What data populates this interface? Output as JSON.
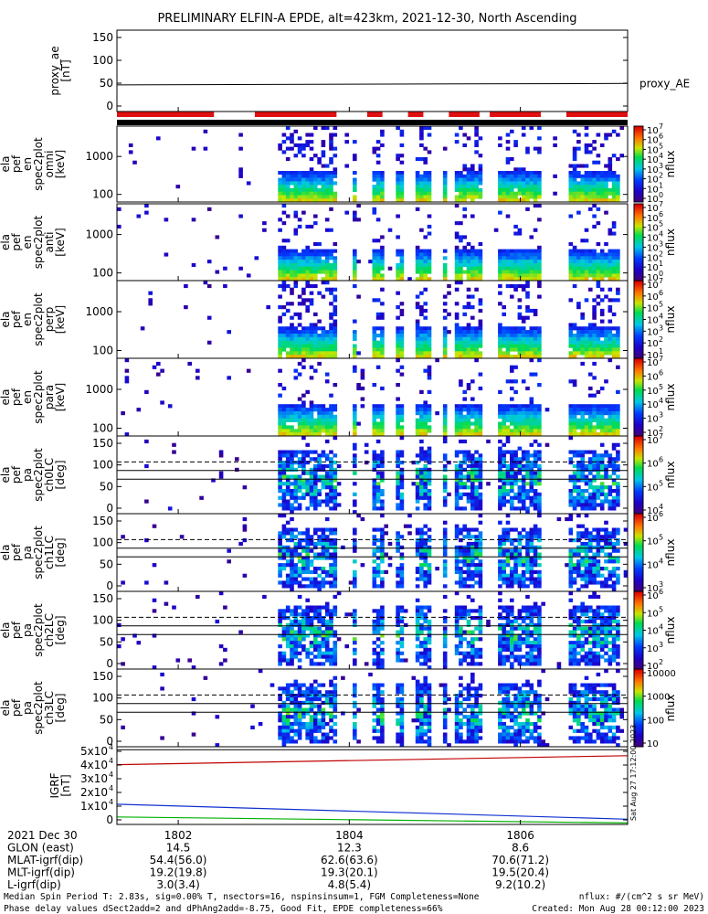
{
  "title": "PRELIMINARY ELFIN-A EPDE, alt=423km, 2021-12-30, North Ascending",
  "chart_data": {
    "type": "heatmap",
    "x_ticks": [
      "1802",
      "1804",
      "1806"
    ],
    "panels": [
      {
        "id": "proxy_ae",
        "ylabel": [
          "proxy_ae",
          "[nT]"
        ],
        "yticks": [
          "150",
          "100",
          "50",
          "0"
        ],
        "legend": "proxy_AE",
        "value": 45
      },
      {
        "id": "omni",
        "ylabel": [
          "ela",
          "pef",
          "en",
          "spec2plot",
          "omni",
          "[keV]"
        ],
        "yticks": [
          "1000",
          "100"
        ],
        "cbar_ticks": [
          "10",
          "10",
          "10",
          "10",
          "10",
          "10",
          "10",
          "10"
        ],
        "cbar_exps": [
          "7",
          "6",
          "5",
          "4",
          "3",
          "2",
          "1",
          "0"
        ],
        "cbar_label": "nflux"
      },
      {
        "id": "anti",
        "ylabel": [
          "ela",
          "pef",
          "en",
          "spec2plot",
          "anti",
          "[keV]"
        ],
        "yticks": [
          "1000",
          "100"
        ],
        "cbar_ticks": [
          "10",
          "10",
          "10",
          "10",
          "10",
          "10",
          "10",
          "10"
        ],
        "cbar_exps": [
          "7",
          "6",
          "5",
          "4",
          "3",
          "2",
          "1",
          "0"
        ],
        "cbar_label": "nflux"
      },
      {
        "id": "perp",
        "ylabel": [
          "ela",
          "pef",
          "en",
          "spec2plot",
          "perp",
          "[keV]"
        ],
        "yticks": [
          "1000",
          "100"
        ],
        "cbar_ticks": [
          "10",
          "10",
          "10",
          "10",
          "10",
          "10",
          "10"
        ],
        "cbar_exps": [
          "7",
          "6",
          "5",
          "4",
          "3",
          "2",
          "1"
        ],
        "cbar_label": "nflux"
      },
      {
        "id": "para",
        "ylabel": [
          "ela",
          "pef",
          "en",
          "spec2plot",
          "para",
          "[keV]"
        ],
        "yticks": [
          "1000",
          "100"
        ],
        "cbar_ticks": [
          "10",
          "10",
          "10",
          "10",
          "10",
          "10"
        ],
        "cbar_exps": [
          "7",
          "6",
          "5",
          "4",
          "3",
          "2"
        ],
        "cbar_label": "nflux"
      },
      {
        "id": "ch0LC",
        "ylabel": [
          "ela",
          "pef",
          "pa",
          "spec2plot",
          "ch0LC",
          "[deg]"
        ],
        "yticks": [
          "150",
          "100",
          "50",
          "0"
        ],
        "cbar_ticks": [
          "10",
          "10",
          "10",
          "10"
        ],
        "cbar_exps": [
          "7",
          "6",
          "5",
          "4"
        ],
        "cbar_label": "nflux"
      },
      {
        "id": "ch1LC",
        "ylabel": [
          "ela",
          "pef",
          "pa",
          "spec2plot",
          "ch1LC",
          "[deg]"
        ],
        "yticks": [
          "150",
          "100",
          "50",
          "0"
        ],
        "cbar_ticks": [
          "10",
          "10",
          "10",
          "10"
        ],
        "cbar_exps": [
          "6",
          "5",
          "4",
          "3"
        ],
        "cbar_label": "nflux"
      },
      {
        "id": "ch2LC",
        "ylabel": [
          "ela",
          "pef",
          "pa",
          "spec2plot",
          "ch2LC",
          "[deg]"
        ],
        "yticks": [
          "150",
          "100",
          "50",
          "0"
        ],
        "cbar_ticks": [
          "10",
          "10",
          "10",
          "10",
          "10"
        ],
        "cbar_exps": [
          "6",
          "5",
          "4",
          "3",
          "2"
        ],
        "cbar_label": "nflux"
      },
      {
        "id": "ch3LC",
        "ylabel": [
          "ela",
          "pef",
          "pa",
          "spec2plot",
          "ch3LC",
          "[deg]"
        ],
        "yticks": [
          "150",
          "100",
          "50",
          "0"
        ],
        "cbar_ticks": [
          "10000",
          "1000",
          "100",
          "10"
        ],
        "cbar_exps": [
          "",
          "",
          "",
          ""
        ],
        "cbar_label": "nflux"
      },
      {
        "id": "igrf",
        "ylabel": [
          "IGRF",
          "[nT]"
        ],
        "yticks": [
          "5x10",
          "4x10",
          "3x10",
          "2x10",
          "1x10",
          "0"
        ],
        "ytick_exps": [
          "4",
          "4",
          "4",
          "4",
          "4",
          ""
        ],
        "ylim": [
          0,
          50000
        ],
        "series": [
          {
            "name": "red",
            "start": 40000,
            "end": 46000
          },
          {
            "name": "blue",
            "start": 13500,
            "end": 3500
          },
          {
            "name": "green",
            "start": 5000,
            "end": 1000
          }
        ]
      }
    ],
    "science_zones": [
      [
        0.0,
        0.19
      ],
      [
        0.27,
        0.43
      ],
      [
        0.49,
        0.52
      ],
      [
        0.57,
        0.6
      ],
      [
        0.65,
        0.71
      ],
      [
        0.73,
        0.83
      ],
      [
        0.88,
        1.0
      ]
    ]
  },
  "side_stamp": "Sat Aug 27 17:12:00 2023",
  "orbit": {
    "labels": [
      "2021 Dec 30",
      "GLON (east)",
      "MLAT-igrf(dip)",
      "MLT-igrf(dip)",
      "L-igrf(dip)"
    ],
    "columns": [
      [
        "1802",
        "14.5",
        "54.4(56.0)",
        "19.2(19.8)",
        "3.0(3.4)"
      ],
      [
        "1804",
        "12.3",
        "62.6(63.6)",
        "19.3(20.1)",
        "4.8(5.4)"
      ],
      [
        "1806",
        "8.6",
        "70.6(71.2)",
        "19.5(20.4)",
        "9.2(10.2)"
      ]
    ]
  },
  "footer": {
    "line1_left": "Median Spin Period T: 2.83s, sig=0.00% T, nsectors=16, nspinsinsum=1, FGM Completeness=None",
    "line1_right": "nflux: #/(cm^2 s sr MeV)",
    "line2_left": "Phase delay values dSect2add=2 and dPhAng2add=-8.75, Good Fit, EPDE completeness=66%",
    "line2_right": "Created: Mon Aug 28 00:12:00 2023"
  }
}
